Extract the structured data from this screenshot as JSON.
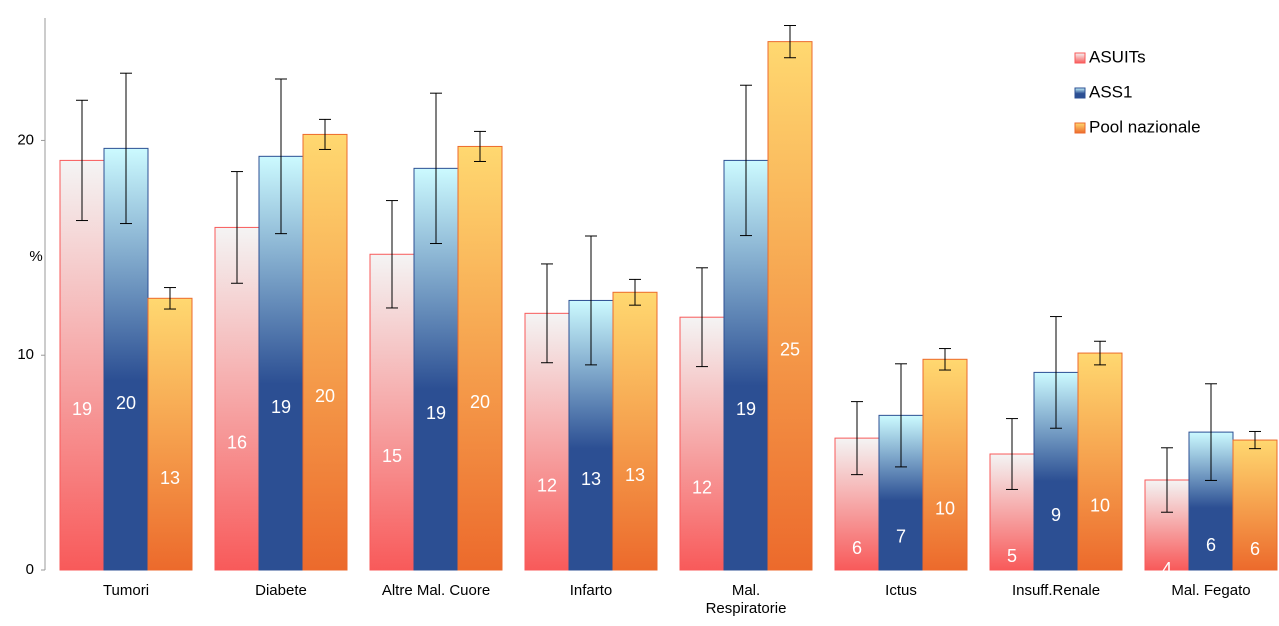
{
  "chart_data": {
    "type": "bar",
    "y_label": "%",
    "categories": [
      "Tumori",
      "Diabete",
      "Altre Mal. Cuore",
      "Infarto",
      "Mal. Respiratorie",
      "Ictus",
      "Insuff.Renale",
      "Mal. Fegato"
    ],
    "series": [
      {
        "name": "ASUITs",
        "color": "#f85a5a",
        "values": [
          19.07,
          15.95,
          14.7,
          11.95,
          11.77,
          6.14,
          5.4,
          4.19
        ],
        "value_labels": [
          "19",
          "16",
          "15",
          "12",
          "12",
          "6",
          "5",
          "4"
        ],
        "errors": [
          2.8,
          2.6,
          2.5,
          2.3,
          2.3,
          1.7,
          1.65,
          1.5
        ]
      },
      {
        "name": "ASS1",
        "color": "#2c4f93",
        "values": [
          19.63,
          19.26,
          18.7,
          12.55,
          19.07,
          7.2,
          9.2,
          6.42
        ],
        "value_labels": [
          "20",
          "19",
          "19",
          "13",
          "19",
          "7",
          "9",
          "6"
        ],
        "errors": [
          3.5,
          3.6,
          3.5,
          3.0,
          3.5,
          2.4,
          2.6,
          2.25
        ]
      },
      {
        "name": "Pool nazionale",
        "color": "#ec6a2c",
        "values": [
          12.65,
          20.28,
          19.72,
          12.93,
          24.6,
          9.81,
          10.1,
          6.05
        ],
        "value_labels": [
          "13",
          "20",
          "20",
          "13",
          "25",
          "10",
          "10",
          "6"
        ],
        "errors": [
          0.5,
          0.7,
          0.7,
          0.6,
          0.75,
          0.5,
          0.55,
          0.4
        ]
      }
    ],
    "ylim": [
      0,
      25.7
    ],
    "yticks": [
      0,
      10,
      20
    ],
    "grid": false,
    "legend": "top-right"
  }
}
